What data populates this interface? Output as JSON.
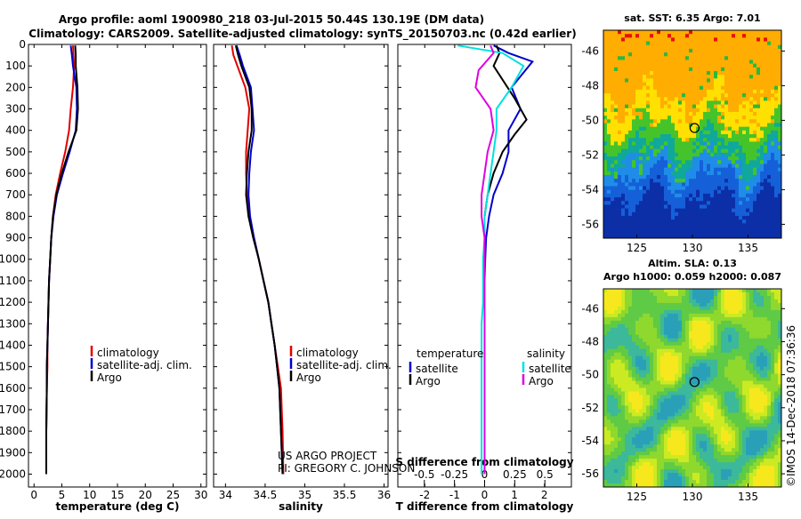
{
  "header": {
    "title_line1": "Argo profile: aoml 1900980_218 03-Jul-2015 50.44S 130.19E (DM data)",
    "title_line2": "Climatology: CARS2009. Satellite-adjusted climatology: synTS_20150703.nc (0.42d earlier)"
  },
  "colors": {
    "climatology": "#e00000",
    "satellite": "#0000cc",
    "argo": "#000000",
    "t_satellite_diff": "#0000cc",
    "s_satellite_diff": "#00e0e0",
    "s_argo_diff": "#e000e0"
  },
  "chart_data": [
    {
      "type": "line",
      "name": "temperature-profile",
      "xlabel": "temperature (deg C)",
      "ylabel": "",
      "xlim": [
        -1,
        31
      ],
      "ylim": [
        2060,
        0
      ],
      "xticks": [
        0,
        5,
        10,
        15,
        20,
        25,
        30
      ],
      "yticks": [
        0,
        100,
        200,
        300,
        400,
        500,
        600,
        700,
        800,
        900,
        1000,
        1100,
        1200,
        1300,
        1400,
        1500,
        1600,
        1700,
        1800,
        1900,
        2000
      ],
      "legend": [
        "climatology",
        "satellite-adj. clim.",
        "Argo"
      ],
      "series": [
        {
          "name": "climatology",
          "color": "#e00000",
          "x": [
            7.0,
            7.1,
            7.2,
            7.0,
            6.6,
            6.3,
            5.6,
            4.7,
            3.9,
            3.4,
            3.1,
            2.9,
            2.7,
            2.6,
            2.5,
            2.4,
            2.4,
            2.3,
            2.2,
            2.2
          ],
          "y": [
            5,
            50,
            100,
            200,
            300,
            400,
            500,
            600,
            700,
            800,
            900,
            1000,
            1100,
            1200,
            1300,
            1400,
            1500,
            1600,
            1800,
            2000
          ]
        },
        {
          "name": "satellite-adj. clim.",
          "color": "#0000cc",
          "x": [
            6.6,
            6.8,
            7.0,
            7.6,
            7.7,
            7.5,
            6.4,
            5.2,
            4.1,
            3.5,
            3.1,
            2.9,
            2.7,
            2.6,
            2.5,
            2.4,
            2.3,
            2.3,
            2.2,
            2.2
          ],
          "y": [
            5,
            50,
            100,
            200,
            300,
            400,
            500,
            600,
            700,
            800,
            900,
            1000,
            1100,
            1200,
            1300,
            1400,
            1500,
            1600,
            1800,
            2000
          ]
        },
        {
          "name": "Argo",
          "color": "#000000",
          "x": [
            7.4,
            7.5,
            7.5,
            7.8,
            7.9,
            7.6,
            6.2,
            5.0,
            4.0,
            3.4,
            3.1,
            2.9,
            2.7,
            2.6,
            2.5,
            2.4,
            2.3,
            2.3,
            2.2,
            2.2
          ],
          "y": [
            5,
            50,
            100,
            200,
            300,
            400,
            500,
            600,
            700,
            800,
            900,
            1000,
            1100,
            1200,
            1300,
            1400,
            1500,
            1600,
            1800,
            2000
          ]
        }
      ]
    },
    {
      "type": "line",
      "name": "salinity-profile",
      "xlabel": "salinity",
      "ylabel": "",
      "xlim": [
        33.85,
        36.05
      ],
      "ylim": [
        2060,
        0
      ],
      "xticks": [
        34,
        34.5,
        35,
        35.5,
        36
      ],
      "xticklabels": [
        "34",
        "34.5",
        "35",
        "35.5",
        "36"
      ],
      "legend": [
        "climatology",
        "satellite-adj. clim.",
        "Argo"
      ],
      "series": [
        {
          "name": "climatology",
          "color": "#e00000",
          "x": [
            34.08,
            34.1,
            34.15,
            34.25,
            34.3,
            34.28,
            34.26,
            34.26,
            34.27,
            34.3,
            34.36,
            34.42,
            34.48,
            34.54,
            34.58,
            34.62,
            34.66,
            34.7,
            34.72,
            34.73
          ],
          "y": [
            5,
            50,
            100,
            200,
            300,
            400,
            500,
            600,
            700,
            800,
            900,
            1000,
            1100,
            1200,
            1300,
            1400,
            1500,
            1600,
            1800,
            2000
          ]
        },
        {
          "name": "satellite-adj. clim.",
          "color": "#0000cc",
          "x": [
            34.14,
            34.18,
            34.22,
            34.32,
            34.34,
            34.36,
            34.32,
            34.3,
            34.29,
            34.31,
            34.36,
            34.42,
            34.48,
            34.54,
            34.58,
            34.62,
            34.65,
            34.68,
            34.7,
            34.72
          ],
          "y": [
            5,
            50,
            100,
            200,
            300,
            400,
            500,
            600,
            700,
            800,
            900,
            1000,
            1100,
            1200,
            1300,
            1400,
            1500,
            1600,
            1800,
            2000
          ]
        },
        {
          "name": "Argo",
          "color": "#000000",
          "x": [
            34.13,
            34.16,
            34.2,
            34.3,
            34.33,
            34.33,
            34.29,
            34.27,
            34.26,
            34.29,
            34.35,
            34.42,
            34.48,
            34.54,
            34.58,
            34.62,
            34.65,
            34.68,
            34.7,
            34.72
          ],
          "y": [
            5,
            50,
            100,
            200,
            300,
            400,
            500,
            600,
            700,
            800,
            900,
            1000,
            1100,
            1200,
            1300,
            1400,
            1500,
            1600,
            1800,
            2000
          ]
        }
      ]
    },
    {
      "type": "line",
      "name": "difference-profiles",
      "xlabel": "T difference from climatology",
      "xlabel2": "S difference from climatology",
      "xlim": [
        -2.9,
        2.9
      ],
      "ylim": [
        2060,
        0
      ],
      "xticks": [
        -2,
        -1,
        0,
        1,
        2
      ],
      "xticklabels": [
        "-2",
        "-1",
        "0",
        "1",
        "2"
      ],
      "xticks2": [
        -0.5,
        -0.25,
        0,
        0.25,
        0.5
      ],
      "xticklabels2": [
        "-0.5",
        "-0.25",
        "0",
        "0.25",
        "0.5"
      ],
      "legend_left_title": "temperature",
      "legend_right_title": "salinity",
      "legend_left": [
        "satellite",
        "Argo"
      ],
      "legend_right": [
        "satellite",
        "Argo"
      ],
      "series": [
        {
          "name": "T satellite",
          "color": "#0000cc",
          "x": [
            0.3,
            0.8,
            1.6,
            0.9,
            1.2,
            0.8,
            0.8,
            0.6,
            0.3,
            0.15,
            0.05,
            0.02,
            0.0,
            0.0,
            0.0,
            0.0,
            0.0,
            0.0,
            0.0,
            0.0
          ],
          "y": [
            5,
            40,
            80,
            200,
            300,
            400,
            500,
            600,
            700,
            800,
            900,
            1000,
            1100,
            1200,
            1300,
            1400,
            1500,
            1600,
            1800,
            2000
          ]
        },
        {
          "name": "T Argo",
          "color": "#000000",
          "x": [
            0.4,
            0.5,
            0.3,
            1.0,
            1.4,
            1.0,
            0.6,
            0.3,
            0.1,
            0.0,
            0.0,
            0.0,
            0.0,
            0.0,
            0.0,
            0.0,
            0.0,
            0.0,
            0.0,
            0.0
          ],
          "y": [
            5,
            40,
            100,
            250,
            350,
            420,
            500,
            600,
            700,
            800,
            900,
            1000,
            1100,
            1200,
            1300,
            1400,
            1500,
            1600,
            1800,
            2000
          ]
        },
        {
          "name": "S satellite",
          "color": "#00e0e0",
          "x": [
            -0.9,
            0.6,
            1.3,
            0.9,
            0.4,
            0.4,
            0.3,
            0.2,
            0.1,
            0.0,
            0.0,
            -0.05,
            -0.05,
            -0.05,
            -0.1,
            -0.1,
            -0.1,
            -0.1,
            -0.1,
            -0.1
          ],
          "y": [
            5,
            40,
            100,
            200,
            300,
            400,
            500,
            600,
            700,
            800,
            900,
            1000,
            1100,
            1200,
            1300,
            1400,
            1500,
            1600,
            1800,
            2000
          ]
        },
        {
          "name": "S Argo",
          "color": "#e000e0",
          "x": [
            0.2,
            0.3,
            -0.2,
            -0.3,
            0.2,
            0.3,
            0.1,
            0.0,
            -0.1,
            -0.1,
            0.0,
            0.0,
            0.0,
            0.0,
            0.0,
            0.0,
            0.0,
            0.0,
            0.0,
            0.0
          ],
          "y": [
            5,
            40,
            120,
            200,
            300,
            400,
            500,
            600,
            700,
            800,
            900,
            1000,
            1100,
            1200,
            1300,
            1400,
            1500,
            1600,
            1800,
            2000
          ]
        }
      ]
    },
    {
      "type": "heatmap",
      "name": "sst-map",
      "title": "sat. SST: 6.35 Argo: 7.01",
      "xlim": [
        122,
        138
      ],
      "ylim": [
        -56.8,
        -44.8
      ],
      "xticks": [
        125,
        130,
        135
      ],
      "yticks": [
        -46,
        -48,
        -50,
        -52,
        -54,
        -56
      ],
      "argo_position": {
        "lon": 130.19,
        "lat": -50.44
      }
    },
    {
      "type": "heatmap",
      "name": "sla-map",
      "title": "Altim. SLA: 0.13",
      "subtitle": "Argo h1000: 0.059 h2000: 0.087",
      "xlim": [
        122,
        138
      ],
      "ylim": [
        -56.8,
        -44.8
      ],
      "xticks": [
        125,
        130,
        135
      ],
      "yticks": [
        -46,
        -48,
        -50,
        -52,
        -54,
        -56
      ],
      "argo_position": {
        "lon": 130.19,
        "lat": -50.44
      }
    }
  ],
  "credits": {
    "project_line1": "US ARGO PROJECT",
    "project_line2": "PI: GREGORY C. JOHNSON",
    "imos_stamp": "©IMOS 14-Dec-2018 07:36:36"
  }
}
